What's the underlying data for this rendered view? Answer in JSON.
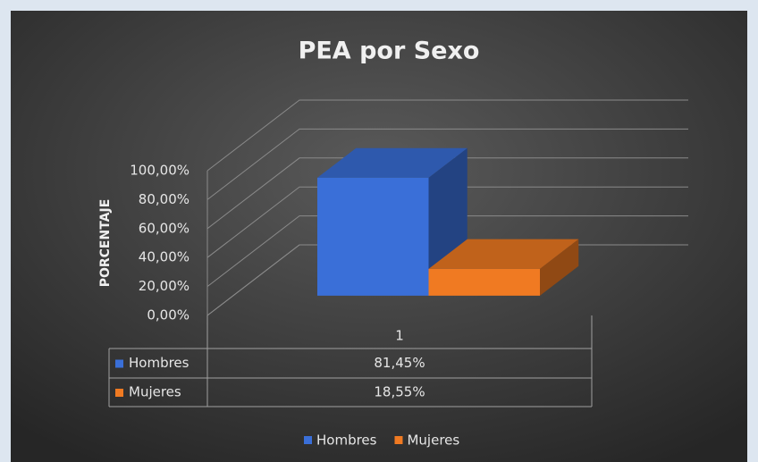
{
  "chart_data": {
    "type": "bar3d",
    "title": "PEA por Sexo",
    "y_label": "PORCENTAJE",
    "categories": [
      "1"
    ],
    "series": [
      {
        "name": "Hombres",
        "color": "#3a6fd8",
        "values": [
          81.45
        ],
        "value_labels": [
          "81,45%"
        ]
      },
      {
        "name": "Mujeres",
        "color": "#f07a22",
        "values": [
          18.55
        ],
        "value_labels": [
          "18,55%"
        ]
      }
    ],
    "ylim": [
      0,
      100
    ],
    "yticks": [
      {
        "value": 0,
        "label": "0,00%"
      },
      {
        "value": 20,
        "label": "20,00%"
      },
      {
        "value": 40,
        "label": "40,00%"
      },
      {
        "value": 60,
        "label": "60,00%"
      },
      {
        "value": 80,
        "label": "80,00%"
      },
      {
        "value": 100,
        "label": "100,00%"
      }
    ],
    "grid": true,
    "legend": "bottom"
  }
}
